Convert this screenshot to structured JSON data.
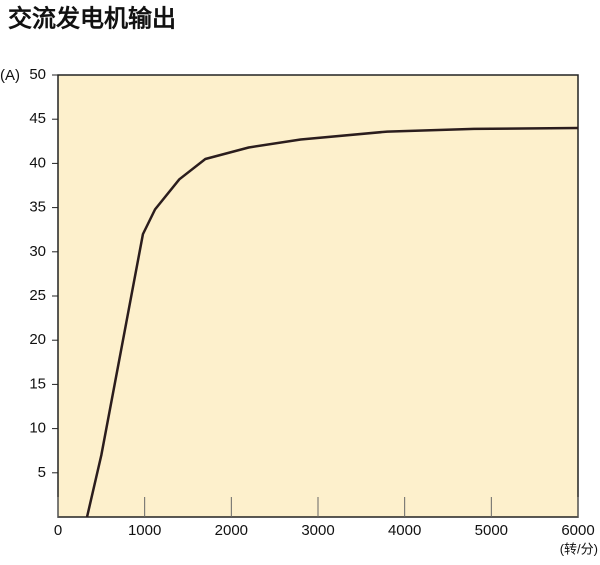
{
  "chart_data": {
    "type": "line",
    "title": "交流发电机输出",
    "ylabel": "(A)",
    "xlabel": "(转/分)",
    "x": [
      335,
      500,
      980,
      1120,
      1400,
      1700,
      2200,
      2800,
      3800,
      4800,
      6000
    ],
    "series": [
      {
        "color": "#2b1d1d",
        "values": [
          0,
          7,
          32,
          34.8,
          38.2,
          40.5,
          41.8,
          42.7,
          43.6,
          43.9,
          44.0
        ]
      }
    ],
    "xlim": [
      0,
      6000
    ],
    "xticks": [
      0,
      1000,
      2000,
      3000,
      4000,
      5000,
      6000
    ],
    "ylim": [
      0,
      50
    ],
    "yticks": [
      5,
      10,
      15,
      20,
      25,
      30,
      35,
      40,
      45,
      50
    ],
    "background": "#fdf0cc"
  }
}
